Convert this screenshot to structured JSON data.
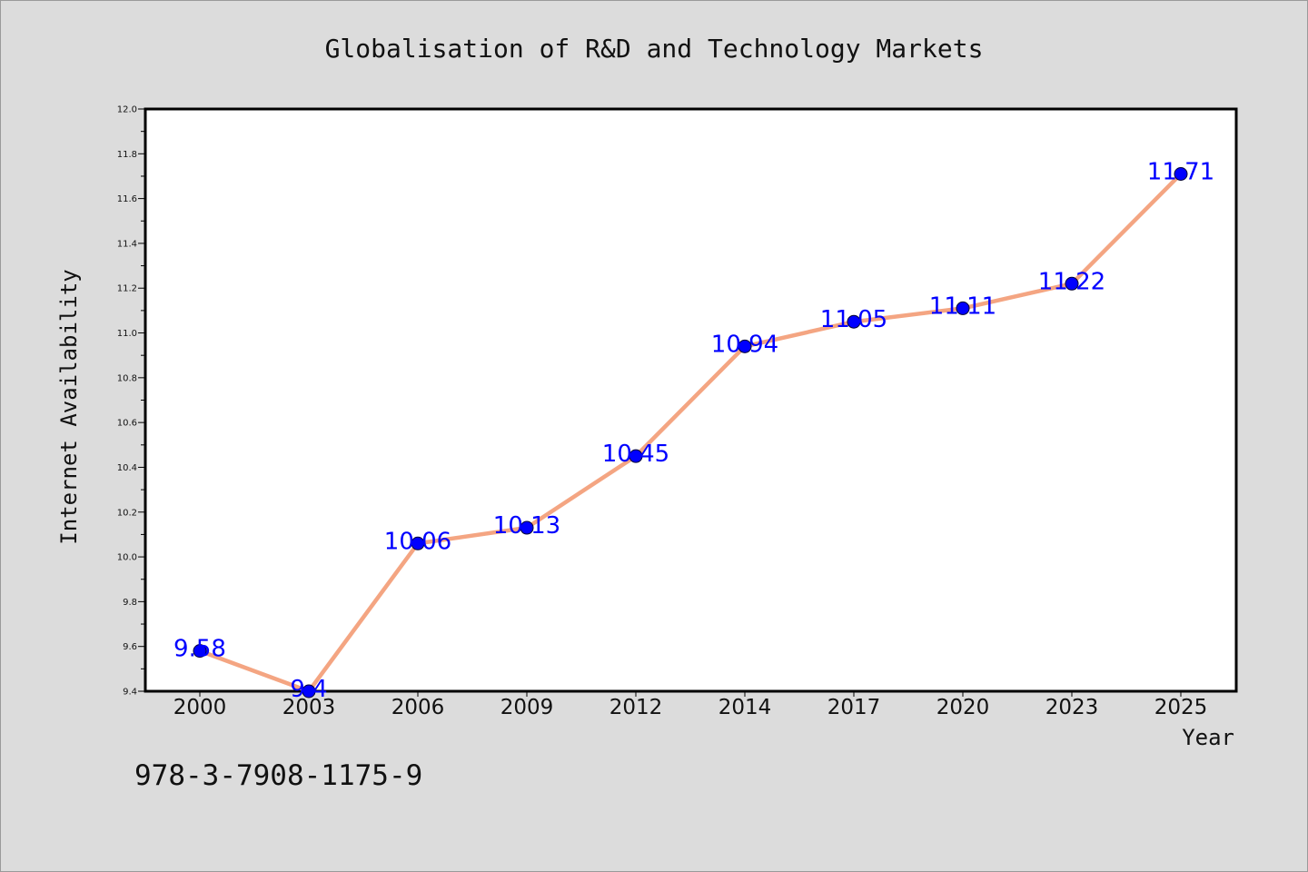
{
  "chart_data": {
    "type": "line",
    "title": "Globalisation of R&D and Technology Markets",
    "xlabel": "Year",
    "ylabel": "Internet Availability",
    "categories": [
      "2000",
      "2003",
      "2006",
      "2009",
      "2012",
      "2014",
      "2017",
      "2020",
      "2023",
      "2025"
    ],
    "series": [
      {
        "values": [
          9.58,
          9.4,
          10.06,
          10.13,
          10.45,
          10.94,
          11.05,
          11.11,
          11.22,
          11.71
        ],
        "data_labels": [
          "9.58",
          "9.4",
          "10.06",
          "10.13",
          "10.45",
          "10.94",
          "11.05",
          "11.11",
          "11.22",
          "11.71"
        ]
      }
    ],
    "ylim": [
      9.4,
      12.0
    ],
    "yticks": [
      "9.4",
      "9.6",
      "9.8",
      "10.0",
      "10.2",
      "10.4",
      "10.6",
      "10.8",
      "11.0",
      "11.2",
      "11.4",
      "11.6",
      "11.8",
      "12.0"
    ],
    "grid": false,
    "line_color": "#f4a582",
    "marker_color": "#0000ff",
    "label_color": "#0000ff",
    "annotation": "978-3-7908-1175-9"
  }
}
